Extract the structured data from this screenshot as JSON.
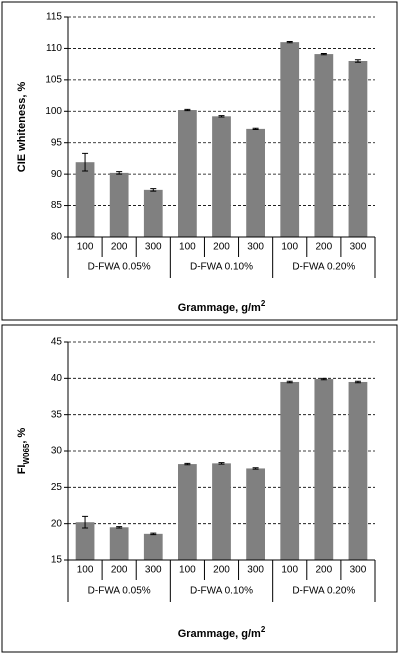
{
  "chart_data": [
    {
      "type": "bar",
      "y_label": "CIE whiteness, %",
      "x_label": [
        "Grammage, g/m",
        "2"
      ],
      "categories": [
        "100",
        "200",
        "300",
        "100",
        "200",
        "300",
        "100",
        "200",
        "300"
      ],
      "groups": [
        "D-FWA 0.05%",
        "D-FWA 0.10%",
        "D-FWA 0.20%"
      ],
      "values": [
        91.9,
        90.2,
        87.5,
        100.2,
        99.2,
        97.2,
        111.0,
        109.1,
        108.0
      ],
      "errors": [
        1.4,
        0.2,
        0.2,
        0.1,
        0.1,
        0.1,
        0.1,
        0.1,
        0.2
      ],
      "color": "#808080",
      "ylim": [
        80,
        115
      ],
      "yticks": [
        80,
        85,
        90,
        95,
        100,
        105,
        110,
        115
      ],
      "grid": true
    },
    {
      "type": "bar",
      "y_label": [
        "FI",
        "W065",
        ", %"
      ],
      "x_label": [
        "Grammage, g/m",
        "2"
      ],
      "categories": [
        "100",
        "200",
        "300",
        "100",
        "200",
        "300",
        "100",
        "200",
        "300"
      ],
      "groups": [
        "D-FWA 0.05%",
        "D-FWA 0.10%",
        "D-FWA 0.20%"
      ],
      "values": [
        20.2,
        19.5,
        18.6,
        28.2,
        28.3,
        27.6,
        39.5,
        39.9,
        39.5
      ],
      "errors": [
        0.8,
        0.1,
        0.1,
        0.1,
        0.1,
        0.1,
        0.1,
        0.1,
        0.1
      ],
      "color": "#808080",
      "ylim": [
        15,
        45
      ],
      "yticks": [
        15,
        20,
        25,
        30,
        35,
        40,
        45
      ],
      "grid": true
    }
  ]
}
